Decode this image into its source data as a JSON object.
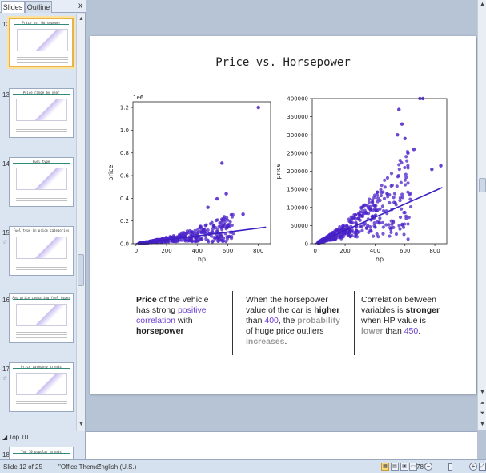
{
  "left_panel": {
    "tabs": {
      "slides": "Slides",
      "outline": "Outline"
    },
    "close_glyph": "x",
    "thumbnails": [
      {
        "num": "12",
        "title": "Price vs. Horsepower",
        "selected": true,
        "anim": ""
      },
      {
        "num": "13",
        "title": "Price range by year",
        "selected": false,
        "anim": ""
      },
      {
        "num": "14",
        "title": "Fuel type",
        "selected": false,
        "anim": ""
      },
      {
        "num": "15",
        "title": "Fuel type in price categories",
        "selected": false,
        "anim": "☆"
      },
      {
        "num": "16",
        "title": "Avg price comparing fuel types",
        "selected": false,
        "anim": ""
      },
      {
        "num": "17",
        "title": "Price category trends",
        "selected": false,
        "anim": "☆"
      }
    ],
    "section": "Top 10",
    "last_thumb": {
      "num": "18",
      "title": "Top 10 popular brands"
    }
  },
  "slide": {
    "title": "Price vs. Horsepower",
    "text1": {
      "a": "Price",
      "b": " of the vehicle has strong ",
      "c": "positive correlation",
      "d": " with ",
      "e": "horsepower"
    },
    "text2": {
      "a": "When the horsepower value of the car is ",
      "b": "higher",
      "c": " than ",
      "d": "400",
      "e": ", the ",
      "f": "probability",
      "g": " of huge price outliers ",
      "h": "increases",
      "i": "."
    },
    "text3": {
      "a": "Correlation between variables is ",
      "b": "stronger",
      "c": " when HP value is ",
      "d": "lower",
      "e": " than ",
      "f": "450",
      "g": "."
    }
  },
  "chart_data": [
    {
      "type": "scatter",
      "xlabel": "hp",
      "ylabel": "price",
      "offset_label": "1e6",
      "xlim": [
        -20,
        880
      ],
      "ylim": [
        0,
        1250000
      ],
      "xticks": [
        0,
        200,
        400,
        600,
        800
      ],
      "yticks": [
        0,
        200000,
        400000,
        600000,
        800000,
        1000000,
        1200000
      ],
      "ytick_labels": [
        "0.0",
        "0.2",
        "0.4",
        "0.6",
        "0.8",
        "1.0",
        "1.2"
      ],
      "trend": [
        [
          0,
          0
        ],
        [
          850,
          145000
        ]
      ],
      "outliers": [
        [
          800,
          1200000
        ],
        [
          562,
          710000
        ],
        [
          590,
          440000
        ],
        [
          530,
          395000
        ],
        [
          700,
          260000
        ],
        [
          470,
          320000
        ]
      ],
      "point_color": "#4b22c8"
    },
    {
      "type": "scatter",
      "xlabel": "hp",
      "ylabel": "price",
      "xlim": [
        -20,
        880
      ],
      "ylim": [
        0,
        400000
      ],
      "xticks": [
        0,
        200,
        400,
        600,
        800
      ],
      "yticks": [
        0,
        50000,
        100000,
        150000,
        200000,
        250000,
        300000,
        350000,
        400000
      ],
      "ytick_labels": [
        "0",
        "50000",
        "100000",
        "150000",
        "200000",
        "250000",
        "300000",
        "350000",
        "400000"
      ],
      "trend": [
        [
          0,
          0
        ],
        [
          850,
          155000
        ]
      ],
      "outliers": [
        [
          560,
          370000
        ],
        [
          700,
          400000
        ],
        [
          720,
          400000
        ],
        [
          580,
          330000
        ],
        [
          600,
          290000
        ],
        [
          840,
          215000
        ],
        [
          780,
          205000
        ],
        [
          620,
          250000
        ],
        [
          550,
          300000
        ],
        [
          660,
          260000
        ]
      ],
      "point_color": "#4b22c8"
    }
  ],
  "status": {
    "slide_info": "Slide 12 of 25",
    "theme": "\"Office Theme\"",
    "language": "English (U.S.)",
    "zoom": "78%"
  }
}
